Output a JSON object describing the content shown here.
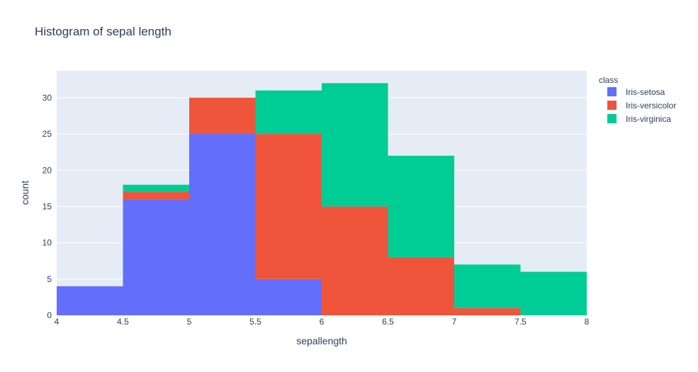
{
  "chart_data": {
    "type": "bar",
    "stacked": true,
    "title": "Histogram of sepal length",
    "xlabel": "sepallength",
    "ylabel": "count",
    "bins": [
      [
        4,
        4.5
      ],
      [
        4.5,
        5
      ],
      [
        5,
        5.5
      ],
      [
        5.5,
        6
      ],
      [
        6,
        6.5
      ],
      [
        6.5,
        7
      ],
      [
        7,
        7.5
      ],
      [
        7.5,
        8
      ]
    ],
    "xlim": [
      4,
      8
    ],
    "ylim": [
      0,
      33.7
    ],
    "x_ticks": [
      4,
      4.5,
      5,
      5.5,
      6,
      6.5,
      7,
      7.5,
      8
    ],
    "x_tick_labels": [
      "4",
      "4.5",
      "5",
      "5.5",
      "6",
      "6.5",
      "7",
      "7.5",
      "8"
    ],
    "y_ticks": [
      0,
      5,
      10,
      15,
      20,
      25,
      30
    ],
    "y_tick_labels": [
      "0",
      "5",
      "10",
      "15",
      "20",
      "25",
      "30"
    ],
    "legend_title": "class",
    "legend_position": "top-right",
    "plot_background": "#e5ecf6",
    "gridlines": true,
    "series": [
      {
        "name": "Iris-setosa",
        "color": "#636efa",
        "values": [
          4,
          16,
          25,
          5,
          0,
          0,
          0,
          0
        ]
      },
      {
        "name": "Iris-versicolor",
        "color": "#ef553b",
        "values": [
          0,
          1,
          5,
          20,
          15,
          8,
          1,
          0
        ]
      },
      {
        "name": "Iris-virginica",
        "color": "#00cc96",
        "values": [
          0,
          1,
          0,
          6,
          17,
          14,
          6,
          6
        ]
      }
    ]
  }
}
